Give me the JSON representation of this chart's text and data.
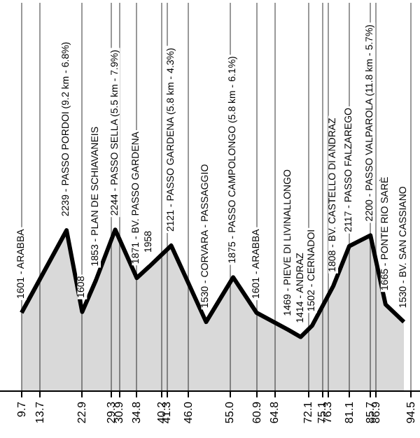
{
  "chart_data": {
    "type": "area",
    "color": "#000000",
    "x": [
      9.7,
      19.5,
      22.9,
      25.9,
      30.1,
      34.8,
      37.5,
      42.3,
      49.9,
      55.8,
      60.9,
      67.8,
      70.5,
      73.0,
      77.6,
      81.1,
      85.7,
      89.0,
      93.0
    ],
    "values": [
      1601,
      2239,
      1608,
      1853,
      2244,
      1871,
      1958,
      2121,
      1530,
      1875,
      1601,
      1469,
      1414,
      1502,
      1808,
      2117,
      2200,
      1665,
      1530
    ],
    "value_labels": [
      "1601 - ARABBA",
      "2239 - PASSO PORDOI (9.2 km - 6.8%)",
      "1608",
      "1853 - PLAN DE SCHIAVANEIS",
      "2244 - PASSO SELLA (5.5 km - 7.9%)",
      "1871 - BV. PASSO GARDENA",
      "1958",
      "2121 - PASSO GARDENA (5.8 km - 4.3%)",
      "1530 - CORVARA - PASSAGGIO",
      "1875 - PASSO CAMPOLONGO (5.8 km - 6.1%)",
      "1601 - ARABBA",
      "1469 - PIEVE DI LIVINALLONGO",
      "1414 - ANDRAZ",
      "1502 - CERNADOI",
      "1808 - BV. CASTELLO DI ANDRAZ",
      "2117 - PASSO FALZAREGO",
      "2200 - PASSO VALPAROLA (11.8 km - 5.7%)",
      "1665 - PONTE RIO SARÈ",
      "1530 - BV. SAN CASSIANO"
    ],
    "xlim": [
      5,
      96.5
    ],
    "xticks": [
      9.7,
      13.7,
      22.9,
      29.3,
      30.9,
      34.8,
      40.2,
      41.3,
      {
        "value": 46,
        "label": "46.0"
      },
      {
        "value": 55,
        "label": "55.0"
      },
      60.9,
      64.8,
      72.1,
      75.1,
      76.3,
      81.1,
      85.7,
      86.9,
      94.5
    ],
    "ylim": [
      1000,
      4000
    ],
    "tick_labels": "x",
    "grid": "x",
    "marker": "none"
  }
}
